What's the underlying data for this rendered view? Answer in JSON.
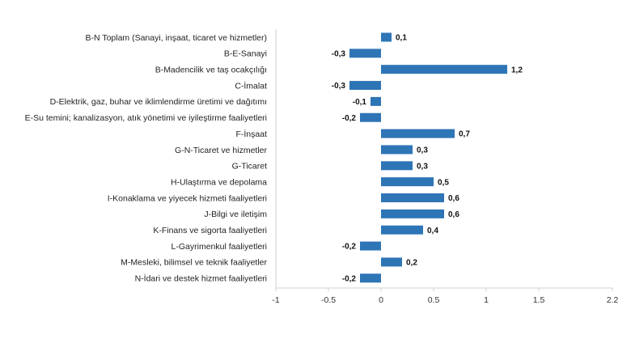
{
  "chart_data": {
    "type": "bar",
    "orientation": "horizontal",
    "title": "",
    "xlabel": "",
    "ylabel": "",
    "categories": [
      "B-N Toplam (Sanayi, inşaat, ticaret ve hizmetler)",
      "B-E-Sanayi",
      "B-Madencilik ve taş ocakçılığı",
      "C-İmalat",
      "D-Elektrik, gaz, buhar ve iklimlendirme üretimi ve dağıtımı",
      "E-Su temini; kanalizasyon, atık yönetimi ve iyileştirme faaliyetleri",
      "F-İnşaat",
      "G-N-Ticaret ve hizmetler",
      "G-Ticaret",
      "H-Ulaştırma ve depolama",
      "I-Konaklama ve yiyecek hizmeti faaliyetleri",
      "J-Bilgi ve iletişim",
      "K-Finans ve sigorta faaliyetleri",
      "L-Gayrimenkul faaliyetleri",
      "M-Mesleki, bilimsel ve teknik faaliyetler",
      "N-İdari ve destek hizmet faaliyetleri"
    ],
    "values": [
      0.1,
      -0.3,
      1.2,
      -0.3,
      -0.1,
      -0.2,
      0.7,
      0.3,
      0.3,
      0.5,
      0.6,
      0.6,
      0.4,
      -0.2,
      0.2,
      -0.2
    ],
    "value_labels": [
      "0,1",
      "-0,3",
      "1,2",
      "-0,3",
      "-0,1",
      "-0,2",
      "0,7",
      "0,3",
      "0,3",
      "0,5",
      "0,6",
      "0,6",
      "0,4",
      "-0,2",
      "0,2",
      "-0,2"
    ],
    "xlim": [
      -1,
      2.2
    ],
    "xticks": [
      -1,
      -0.5,
      0,
      0.5,
      1,
      1.5,
      2.2
    ],
    "xtick_labels": [
      "-1",
      "-0.5",
      "0",
      "0.5",
      "1",
      "1.5",
      "2.2"
    ],
    "grid": false,
    "legend": "none",
    "bar_color": "#2E75B6"
  }
}
